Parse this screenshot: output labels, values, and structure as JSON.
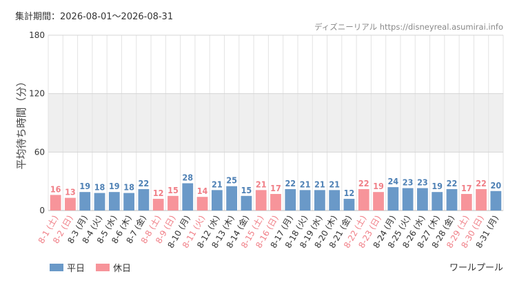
{
  "period_label": "集計期間：2026-08-01～2026-08-31",
  "source_label": "ディズニーリアル https://disneyreal.asumirai.info",
  "attraction_name": "ワールプール",
  "colors": {
    "weekday": "#6a99c8",
    "holiday": "#f7949a",
    "weekday_text": "#333333",
    "holiday_text": "#f07f87",
    "band": "#efefef",
    "grid": "#e3e3e3"
  },
  "chart_data": {
    "type": "bar",
    "ylabel": "平均待ち時間（分）",
    "ylim": [
      0,
      180
    ],
    "yticks": [
      0,
      60,
      120,
      180
    ],
    "grid": true,
    "legend_position": "bottom-left",
    "legend": [
      {
        "label": "平日",
        "key": "weekday"
      },
      {
        "label": "休日",
        "key": "holiday"
      }
    ],
    "categories": [
      "8-1 (土)",
      "8-2 (日)",
      "8-3 (月)",
      "8-4 (火)",
      "8-5 (水)",
      "8-6 (木)",
      "8-7 (金)",
      "8-8 (土)",
      "8-9 (日)",
      "8-10 (月)",
      "8-11 (火)",
      "8-12 (水)",
      "8-13 (木)",
      "8-14 (金)",
      "8-15 (土)",
      "8-16 (日)",
      "8-17 (月)",
      "8-18 (火)",
      "8-19 (水)",
      "8-20 (木)",
      "8-21 (金)",
      "8-22 (土)",
      "8-23 (日)",
      "8-24 (月)",
      "8-25 (火)",
      "8-26 (水)",
      "8-27 (木)",
      "8-28 (金)",
      "8-29 (土)",
      "8-30 (日)",
      "8-31 (月)"
    ],
    "values": [
      16,
      13,
      19,
      18,
      19,
      18,
      22,
      12,
      15,
      28,
      14,
      21,
      25,
      15,
      21,
      17,
      22,
      21,
      21,
      21,
      12,
      22,
      19,
      24,
      23,
      23,
      19,
      22,
      17,
      22,
      20
    ],
    "day_type": [
      "holiday",
      "holiday",
      "weekday",
      "weekday",
      "weekday",
      "weekday",
      "weekday",
      "holiday",
      "holiday",
      "weekday",
      "holiday",
      "weekday",
      "weekday",
      "weekday",
      "holiday",
      "holiday",
      "weekday",
      "weekday",
      "weekday",
      "weekday",
      "weekday",
      "holiday",
      "holiday",
      "weekday",
      "weekday",
      "weekday",
      "weekday",
      "weekday",
      "holiday",
      "holiday",
      "weekday"
    ]
  }
}
